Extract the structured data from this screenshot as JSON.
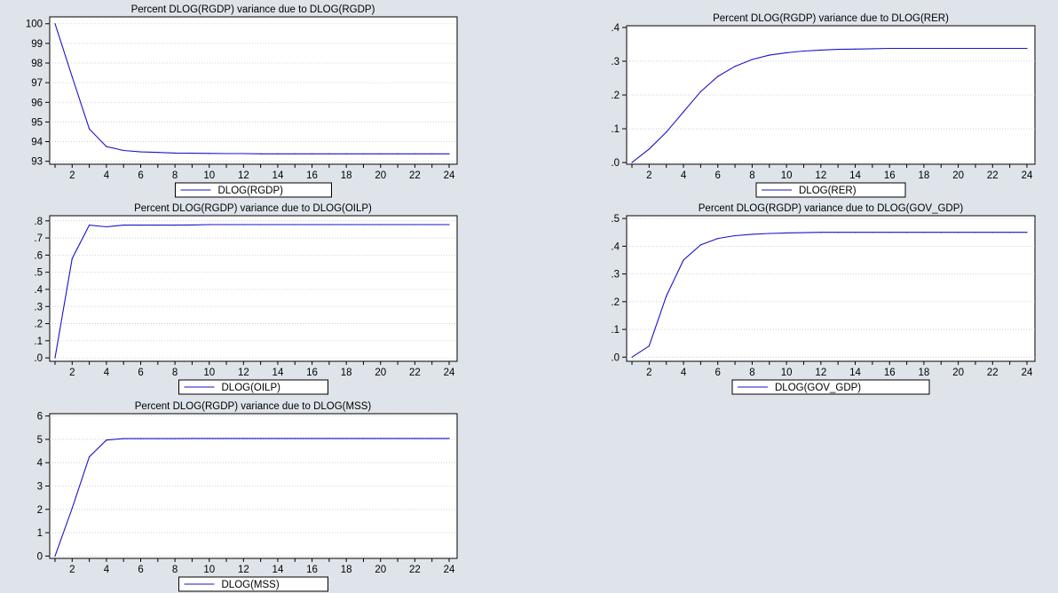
{
  "colors": {
    "background": "#dfe4ea",
    "plot_area": "#ffffff",
    "line": "#1a12c8",
    "grid": "#c8c8c8"
  },
  "chart_data": [
    {
      "type": "line",
      "title": "Percent DLOG(RGDP) variance due to DLOG(RGDP)",
      "x": [
        1,
        2,
        3,
        4,
        5,
        6,
        7,
        8,
        9,
        10,
        11,
        12,
        13,
        14,
        15,
        16,
        17,
        18,
        19,
        20,
        21,
        22,
        23,
        24
      ],
      "xticks": [
        "2",
        "4",
        "6",
        "8",
        "10",
        "12",
        "14",
        "16",
        "18",
        "20",
        "22",
        "24"
      ],
      "yticks": [
        "93",
        "94",
        "95",
        "96",
        "97",
        "98",
        "99",
        "100"
      ],
      "ylim": [
        92.85,
        100.35
      ],
      "grid": true,
      "legend_position": "bottom-center",
      "series": [
        {
          "name": "DLOG(RGDP)",
          "values": [
            100.0,
            97.3,
            94.65,
            93.75,
            93.55,
            93.48,
            93.45,
            93.42,
            93.41,
            93.4,
            93.39,
            93.39,
            93.38,
            93.38,
            93.38,
            93.38,
            93.38,
            93.38,
            93.38,
            93.38,
            93.38,
            93.38,
            93.38,
            93.38
          ]
        }
      ]
    },
    {
      "type": "line",
      "title": "Percent DLOG(RGDP) variance due to DLOG(RER)",
      "x": [
        1,
        2,
        3,
        4,
        5,
        6,
        7,
        8,
        9,
        10,
        11,
        12,
        13,
        14,
        15,
        16,
        17,
        18,
        19,
        20,
        21,
        22,
        23,
        24
      ],
      "xticks": [
        "2",
        "4",
        "6",
        "8",
        "10",
        "12",
        "14",
        "16",
        "18",
        "20",
        "22",
        "24"
      ],
      "yticks": [
        ".0",
        ".1",
        ".2",
        ".3",
        ".4"
      ],
      "ylim": [
        -0.005,
        0.405
      ],
      "grid": true,
      "legend_position": "bottom-center",
      "series": [
        {
          "name": "DLOG(RER)",
          "values": [
            0.0,
            0.04,
            0.09,
            0.15,
            0.21,
            0.255,
            0.285,
            0.305,
            0.318,
            0.325,
            0.33,
            0.333,
            0.335,
            0.336,
            0.337,
            0.338,
            0.338,
            0.338,
            0.338,
            0.338,
            0.338,
            0.338,
            0.338,
            0.338
          ]
        }
      ]
    },
    {
      "type": "line",
      "title": "Percent DLOG(RGDP) variance due to DLOG(OILP)",
      "x": [
        1,
        2,
        3,
        4,
        5,
        6,
        7,
        8,
        9,
        10,
        11,
        12,
        13,
        14,
        15,
        16,
        17,
        18,
        19,
        20,
        21,
        22,
        23,
        24
      ],
      "xticks": [
        "2",
        "4",
        "6",
        "8",
        "10",
        "12",
        "14",
        "16",
        "18",
        "20",
        "22",
        "24"
      ],
      "yticks": [
        ".0",
        ".1",
        ".2",
        ".3",
        ".4",
        ".5",
        ".6",
        ".7",
        ".8"
      ],
      "ylim": [
        -0.02,
        0.83
      ],
      "grid": true,
      "legend_position": "bottom-center",
      "series": [
        {
          "name": "DLOG(OILP)",
          "values": [
            0.0,
            0.58,
            0.775,
            0.765,
            0.775,
            0.775,
            0.775,
            0.775,
            0.776,
            0.778,
            0.778,
            0.778,
            0.778,
            0.778,
            0.778,
            0.778,
            0.778,
            0.778,
            0.778,
            0.778,
            0.778,
            0.778,
            0.778,
            0.778
          ]
        }
      ]
    },
    {
      "type": "line",
      "title": "Percent DLOG(RGDP) variance due to DLOG(GOV_GDP)",
      "x": [
        1,
        2,
        3,
        4,
        5,
        6,
        7,
        8,
        9,
        10,
        11,
        12,
        13,
        14,
        15,
        16,
        17,
        18,
        19,
        20,
        21,
        22,
        23,
        24
      ],
      "xticks": [
        "2",
        "4",
        "6",
        "8",
        "10",
        "12",
        "14",
        "16",
        "18",
        "20",
        "22",
        "24"
      ],
      "yticks": [
        ".0",
        ".1",
        ".2",
        ".3",
        ".4",
        ".5"
      ],
      "ylim": [
        -0.015,
        0.51
      ],
      "grid": true,
      "legend_position": "bottom-center",
      "series": [
        {
          "name": "DLOG(GOV_GDP)",
          "values": [
            0.0,
            0.04,
            0.22,
            0.35,
            0.405,
            0.428,
            0.438,
            0.443,
            0.446,
            0.448,
            0.449,
            0.45,
            0.45,
            0.45,
            0.45,
            0.45,
            0.45,
            0.45,
            0.45,
            0.45,
            0.45,
            0.45,
            0.45,
            0.45
          ]
        }
      ]
    },
    {
      "type": "line",
      "title": "Percent DLOG(RGDP) variance due to DLOG(MSS)",
      "x": [
        1,
        2,
        3,
        4,
        5,
        6,
        7,
        8,
        9,
        10,
        11,
        12,
        13,
        14,
        15,
        16,
        17,
        18,
        19,
        20,
        21,
        22,
        23,
        24
      ],
      "xticks": [
        "2",
        "4",
        "6",
        "8",
        "10",
        "12",
        "14",
        "16",
        "18",
        "20",
        "22",
        "24"
      ],
      "yticks": [
        "0",
        "1",
        "2",
        "3",
        "4",
        "5",
        "6"
      ],
      "ylim": [
        -0.1,
        6.1
      ],
      "grid": true,
      "legend_position": "bottom-center",
      "series": [
        {
          "name": "DLOG(MSS)",
          "values": [
            0.0,
            2.05,
            4.25,
            4.97,
            5.03,
            5.03,
            5.03,
            5.03,
            5.04,
            5.04,
            5.04,
            5.04,
            5.04,
            5.04,
            5.04,
            5.04,
            5.04,
            5.04,
            5.04,
            5.04,
            5.04,
            5.04,
            5.04,
            5.04
          ]
        }
      ]
    }
  ]
}
